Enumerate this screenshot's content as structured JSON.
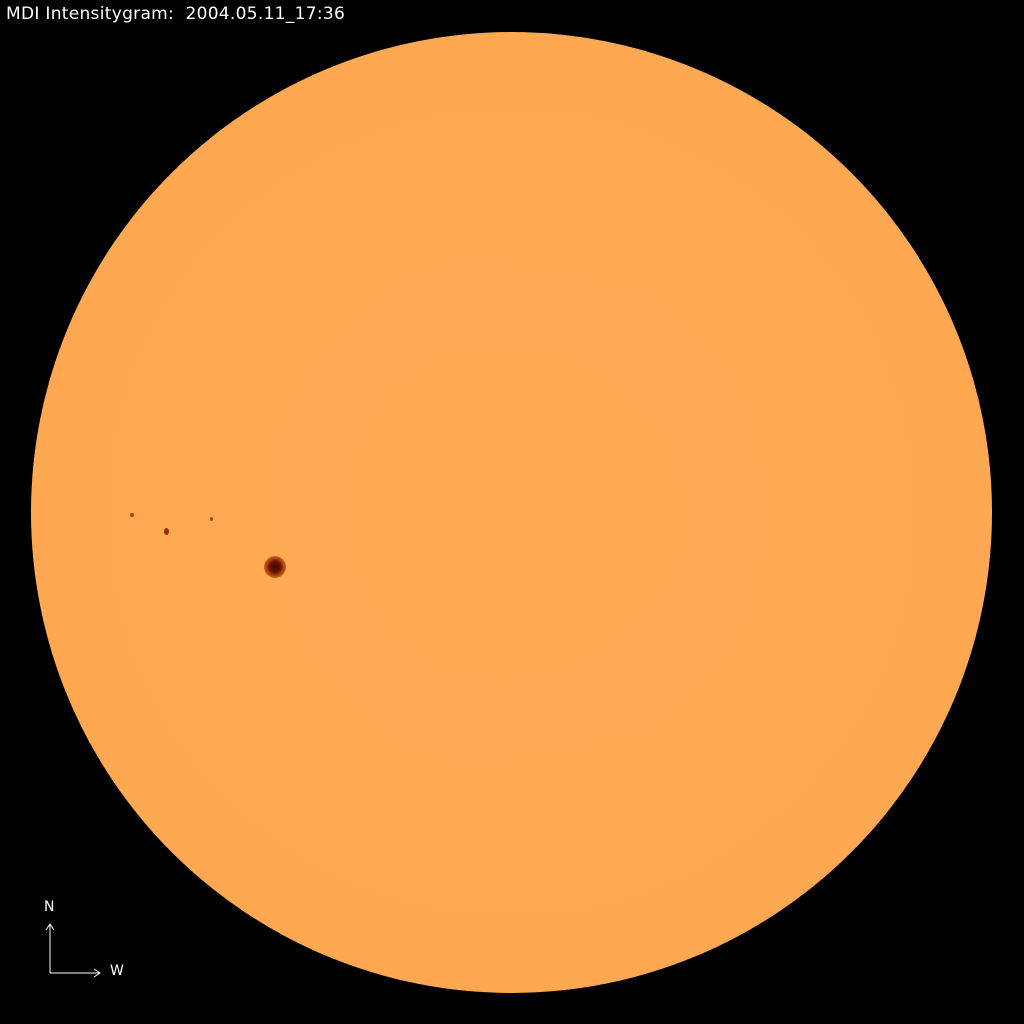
{
  "title": "MDI Intensitygram:  2004.05.11_17:36",
  "compass": {
    "north": "N",
    "west": "W"
  },
  "colors": {
    "background": "#000000",
    "disk": "#ffa852",
    "sunspot_umbra": "#5a0f00",
    "sunspot_penumbra": "#d8601c",
    "text": "#ffffff"
  }
}
